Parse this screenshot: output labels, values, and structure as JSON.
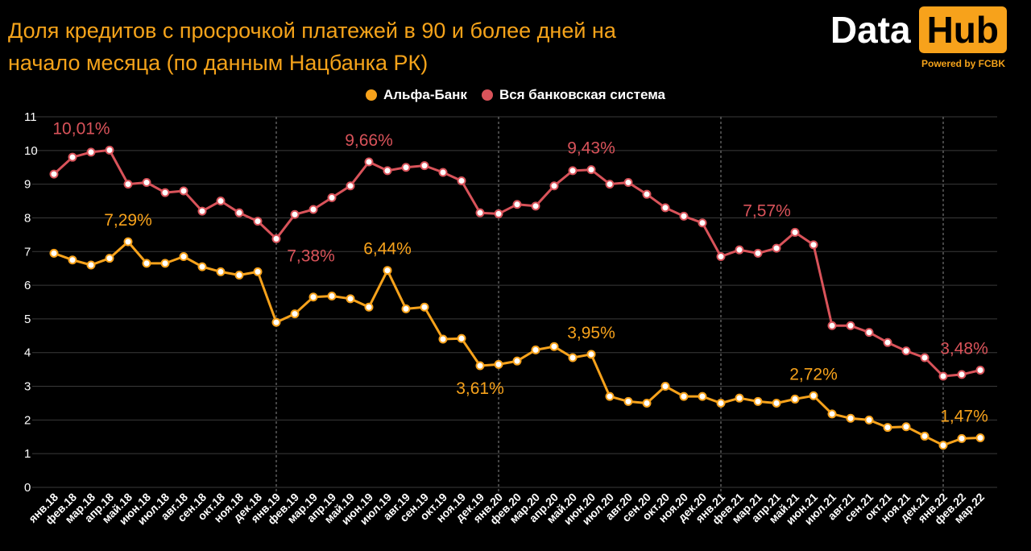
{
  "header": {
    "title_line1": "Доля кредитов с просрочкой платежей в 90 и более дней на",
    "title_line2": "начало месяца (по данным Нацбанка РК)"
  },
  "logo": {
    "word1": "Data",
    "word2": "Hub",
    "subtitle": "Powered by FCBK",
    "accent": "#f7a21b"
  },
  "chart_data": {
    "type": "line",
    "title": "Доля кредитов с просрочкой платежей в 90 и более дней на начало месяца (по данным Нацбанка РК)",
    "xlabel": "",
    "ylabel": "",
    "ylim": [
      0,
      11
    ],
    "yticks": [
      0,
      1,
      2,
      3,
      4,
      5,
      6,
      7,
      8,
      9,
      10,
      11
    ],
    "grid": true,
    "legend_position": "top-center",
    "year_separators_before": [
      "янв.19",
      "янв.20",
      "янв.21",
      "янв.22"
    ],
    "categories": [
      "янв.18",
      "фев.18",
      "мар.18",
      "апр.18",
      "май.18",
      "июн.18",
      "июл.18",
      "авг.18",
      "сен.18",
      "окт.18",
      "ноя.18",
      "дек.18",
      "янв.19",
      "фев.19",
      "мар.19",
      "апр.19",
      "май.19",
      "июн.19",
      "июл.19",
      "авг.19",
      "сен.19",
      "окт.19",
      "ноя.19",
      "дек.19",
      "янв.20",
      "фев.20",
      "мар.20",
      "апр.20",
      "май.20",
      "июн.20",
      "июл.20",
      "авг.20",
      "сен.20",
      "окт.20",
      "ноя.20",
      "дек.20",
      "янв.21",
      "фев.21",
      "мар.21",
      "апр.21",
      "май.21",
      "июн.21",
      "июл.21",
      "авг.21",
      "сен.21",
      "окт.21",
      "ноя.21",
      "дек.21",
      "янв.22",
      "фев.22",
      "мар.22"
    ],
    "series": [
      {
        "name": "Альфа-Банк",
        "color": "#f7a21b",
        "values": [
          6.95,
          6.75,
          6.6,
          6.8,
          7.29,
          6.65,
          6.65,
          6.85,
          6.55,
          6.4,
          6.3,
          6.4,
          4.9,
          5.15,
          5.65,
          5.68,
          5.6,
          5.35,
          6.44,
          5.3,
          5.35,
          4.4,
          4.42,
          3.61,
          3.65,
          3.75,
          4.08,
          4.18,
          3.85,
          3.95,
          2.7,
          2.55,
          2.5,
          3.0,
          2.7,
          2.7,
          2.5,
          2.65,
          2.55,
          2.5,
          2.62,
          2.72,
          2.18,
          2.05,
          2.0,
          1.78,
          1.8,
          1.52,
          1.25,
          1.45,
          1.47
        ],
        "labels": [
          {
            "index": 4,
            "text": "7,29%",
            "pos": "above"
          },
          {
            "index": 18,
            "text": "6,44%",
            "pos": "above"
          },
          {
            "index": 23,
            "text": "3,61%",
            "pos": "below"
          },
          {
            "index": 29,
            "text": "3,95%",
            "pos": "above"
          },
          {
            "index": 41,
            "text": "2,72%",
            "pos": "above"
          },
          {
            "index": 50,
            "text": "1,47%",
            "pos": "above"
          }
        ]
      },
      {
        "name": "Вся банковская система",
        "color": "#d9535a",
        "values": [
          9.3,
          9.8,
          9.95,
          10.01,
          9.0,
          9.05,
          8.75,
          8.8,
          8.2,
          8.5,
          8.15,
          7.9,
          7.38,
          8.1,
          8.25,
          8.6,
          8.95,
          9.66,
          9.4,
          9.5,
          9.55,
          9.35,
          9.1,
          8.15,
          8.12,
          8.4,
          8.35,
          8.95,
          9.4,
          9.43,
          9.0,
          9.05,
          8.7,
          8.3,
          8.05,
          7.85,
          6.85,
          7.05,
          6.95,
          7.1,
          7.57,
          7.2,
          4.8,
          4.8,
          4.6,
          4.3,
          4.05,
          3.85,
          3.3,
          3.35,
          3.48
        ],
        "labels": [
          {
            "index": 3,
            "text": "10,01%",
            "pos": "above-left"
          },
          {
            "index": 12,
            "text": "7,38%",
            "pos": "below-right"
          },
          {
            "index": 17,
            "text": "9,66%",
            "pos": "above"
          },
          {
            "index": 29,
            "text": "9,43%",
            "pos": "above"
          },
          {
            "index": 40,
            "text": "7,57%",
            "pos": "above-left"
          },
          {
            "index": 50,
            "text": "3,48%",
            "pos": "above"
          }
        ]
      }
    ]
  }
}
